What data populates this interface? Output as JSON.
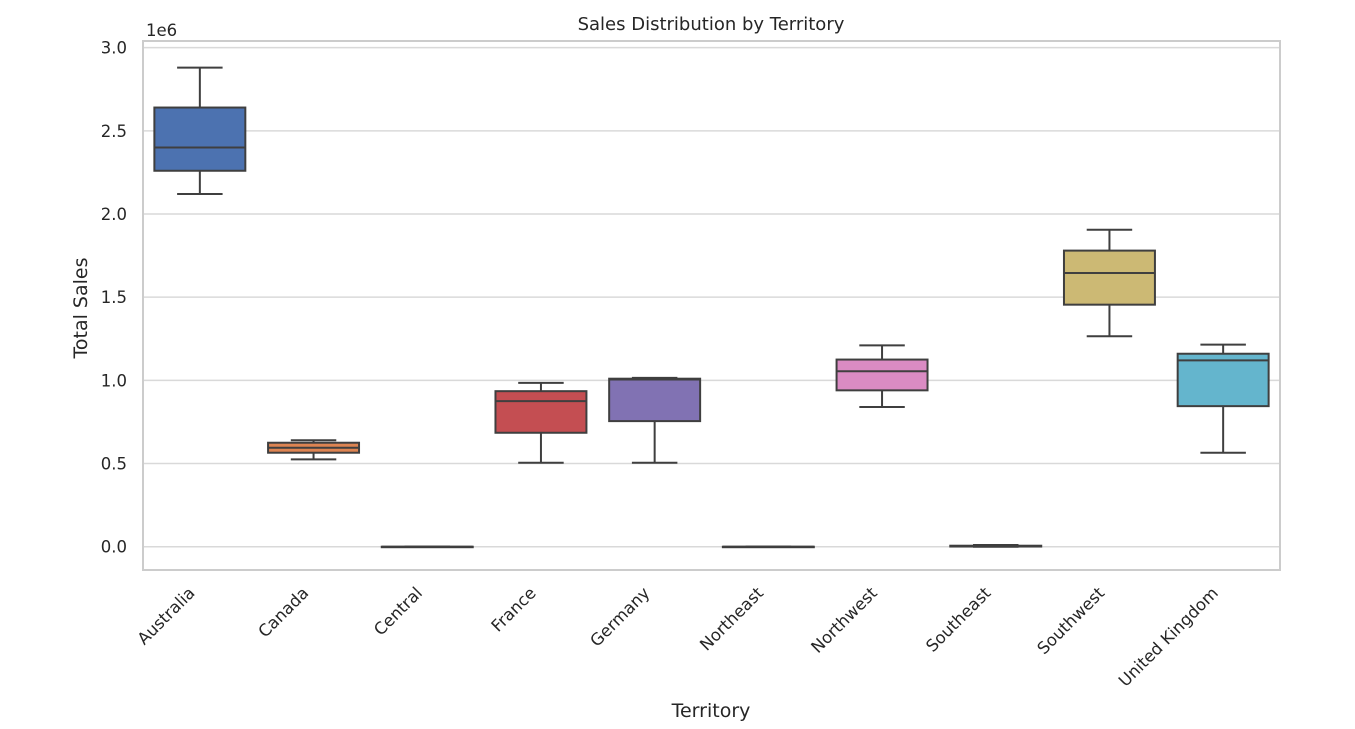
{
  "chart_data": {
    "type": "box",
    "title": "Sales Distribution by Territory",
    "xlabel": "Territory",
    "ylabel": "Total Sales",
    "y_offset_label": "1e6",
    "ylim": [
      -0.14,
      3.04
    ],
    "yticks": [
      0.0,
      0.5,
      1.0,
      1.5,
      2.0,
      2.5,
      3.0
    ],
    "ytick_labels": [
      "0.0",
      "0.5",
      "1.0",
      "1.5",
      "2.0",
      "2.5",
      "3.0"
    ],
    "grid": true,
    "categories": [
      "Australia",
      "Canada",
      "Central",
      "France",
      "Germany",
      "Northeast",
      "Northwest",
      "Southeast",
      "Southwest",
      "United Kingdom"
    ],
    "colors": [
      "#4c72b0",
      "#dd8452",
      "#55a868",
      "#c44e52",
      "#8172b3",
      "#937860",
      "#da8bc3",
      "#8c8c8c",
      "#ccb974",
      "#64b5cd"
    ],
    "boxes": [
      {
        "whislo": 2.12,
        "q1": 2.26,
        "med": 2.4,
        "q3": 2.64,
        "whishi": 2.88
      },
      {
        "whislo": 0.525,
        "q1": 0.565,
        "med": 0.595,
        "q3": 0.625,
        "whishi": 0.64
      },
      {
        "whislo": 0.0,
        "q1": 0.0,
        "med": 0.0,
        "q3": 0.0,
        "whishi": 0.0
      },
      {
        "whislo": 0.505,
        "q1": 0.685,
        "med": 0.875,
        "q3": 0.935,
        "whishi": 0.985
      },
      {
        "whislo": 0.505,
        "q1": 0.755,
        "med": 1.005,
        "q3": 1.01,
        "whishi": 1.015
      },
      {
        "whislo": 0.0,
        "q1": 0.0,
        "med": 0.0,
        "q3": 0.0,
        "whishi": 0.0
      },
      {
        "whislo": 0.84,
        "q1": 0.94,
        "med": 1.055,
        "q3": 1.125,
        "whishi": 1.21
      },
      {
        "whislo": 0.0,
        "q1": 0.001,
        "med": 0.003,
        "q3": 0.006,
        "whishi": 0.01
      },
      {
        "whislo": 1.265,
        "q1": 1.455,
        "med": 1.645,
        "q3": 1.78,
        "whishi": 1.905
      },
      {
        "whislo": 0.565,
        "q1": 0.845,
        "med": 1.12,
        "q3": 1.16,
        "whishi": 1.215
      }
    ]
  }
}
